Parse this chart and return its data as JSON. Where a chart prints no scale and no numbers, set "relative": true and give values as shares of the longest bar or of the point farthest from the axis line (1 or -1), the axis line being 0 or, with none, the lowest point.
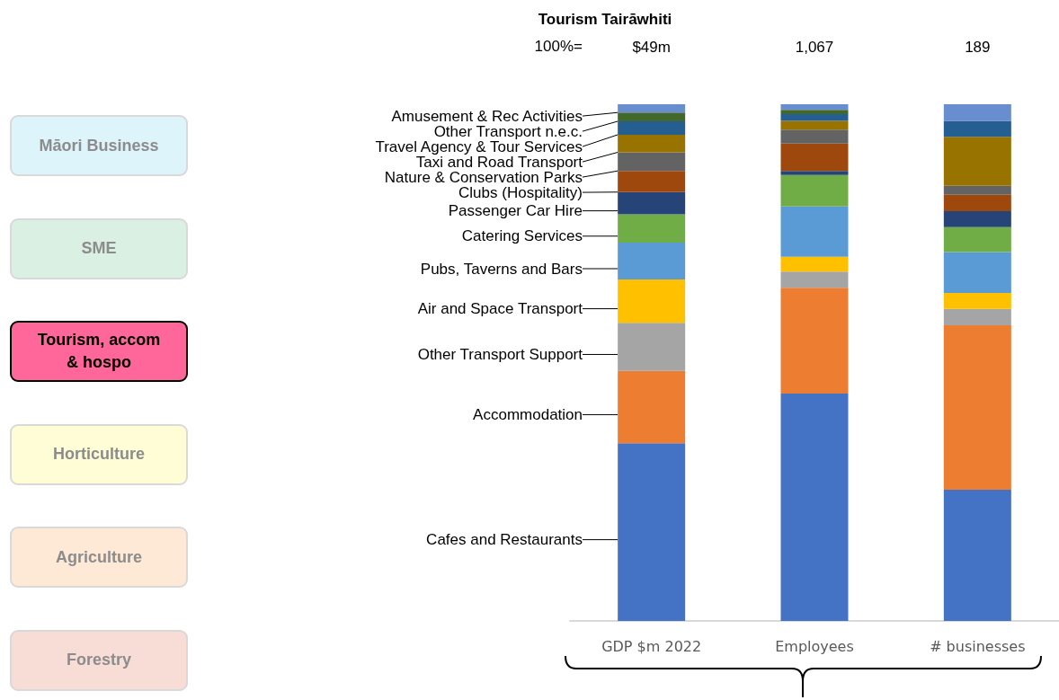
{
  "chart_data": {
    "type": "bar",
    "title": "Tourism Tairāwhiti",
    "categories": [
      "GDP $m 2022",
      "Employees",
      "# businesses"
    ],
    "stacked": true,
    "relative": true,
    "legend": false,
    "annotations": [
      "100%=",
      "Māori Business",
      "SME",
      "Tourism, accom & hospo",
      "Horticulture",
      "Agriculture",
      "Forestry",
      "$49m",
      "1,067",
      "189"
    ],
    "series": [
      {
        "name": "Cafes and Restaurants",
        "color": "#4472c4",
        "values": [
          0.344,
          0.44,
          0.254
        ]
      },
      {
        "name": "Accommodation",
        "color": "#ed7d31",
        "values": [
          0.14,
          0.205,
          0.318
        ]
      },
      {
        "name": "Other Transport Support",
        "color": "#a5a5a5",
        "values": [
          0.093,
          0.031,
          0.032
        ]
      },
      {
        "name": "Air and Space Transport",
        "color": "#ffc000",
        "values": [
          0.084,
          0.029,
          0.031
        ]
      },
      {
        "name": "Pubs, Taverns and Bars",
        "color": "#5b9bd5",
        "values": [
          0.071,
          0.097,
          0.079
        ]
      },
      {
        "name": "Catering Services",
        "color": "#70ad47",
        "values": [
          0.055,
          0.061,
          0.048
        ]
      },
      {
        "name": "Passenger Car Hire",
        "color": "#264478",
        "values": [
          0.043,
          0.008,
          0.031
        ]
      },
      {
        "name": "Clubs (Hospitality)",
        "color": "#9e480e",
        "values": [
          0.041,
          0.053,
          0.032
        ]
      },
      {
        "name": "Nature & Conservation Parks",
        "color": "#636363",
        "values": [
          0.036,
          0.027,
          0.017
        ]
      },
      {
        "name": "Taxi and Road Transport",
        "color": "#997300",
        "values": [
          0.034,
          0.017,
          0.095
        ]
      },
      {
        "name": "Travel Agency & Tour Services",
        "color": "#255e91",
        "values": [
          0.026,
          0.013,
          0.031
        ]
      },
      {
        "name": "Other Transport n.e.c.",
        "color": "#43682b",
        "values": [
          0.017,
          0.008,
          0
        ]
      },
      {
        "name": "Amusement & Rec Activities",
        "color": "#698ed0",
        "values": [
          0.016,
          0.011,
          0.032
        ]
      }
    ]
  }
}
